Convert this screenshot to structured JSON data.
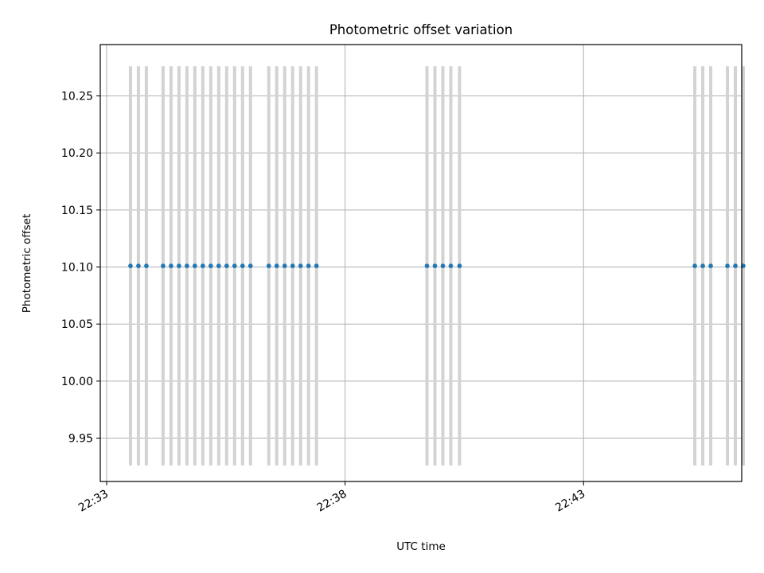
{
  "chart_data": {
    "type": "scatter",
    "title": "Photometric offset variation",
    "xlabel": "UTC time",
    "ylabel": "Photometric offset",
    "x_format": "HH:MM",
    "xlim": [
      "22:32:52",
      "22:46:19"
    ],
    "ylim": [
      9.912,
      10.295
    ],
    "grid": true,
    "yticks": [
      9.95,
      10.0,
      10.05,
      10.1,
      10.15,
      10.2,
      10.25
    ],
    "ytick_labels": [
      "9.95",
      "10.00",
      "10.05",
      "10.10",
      "10.15",
      "10.20",
      "10.25"
    ],
    "xticks": [
      "22:33:00",
      "22:38:00",
      "22:43:00"
    ],
    "xtick_labels": [
      "22:33",
      "22:38",
      "22:43"
    ],
    "errorbar_color": "#d3d3d3",
    "point_color": "#1f77b4",
    "series": [
      {
        "x": [
          "22:33:30",
          "22:33:40",
          "22:33:50",
          "22:34:11",
          "22:34:21",
          "22:34:31",
          "22:34:41",
          "22:34:51",
          "22:35:01",
          "22:35:11",
          "22:35:21",
          "22:35:31",
          "22:35:41",
          "22:35:51",
          "22:36:01",
          "22:36:24",
          "22:36:34",
          "22:36:44",
          "22:36:54",
          "22:37:04",
          "22:37:14",
          "22:37:24",
          "22:39:43",
          "22:39:53",
          "22:40:03",
          "22:40:13",
          "22:40:24",
          "22:45:20",
          "22:45:30",
          "22:45:40",
          "22:46:01",
          "22:46:11",
          "22:46:21"
        ],
        "y": [
          10.101,
          10.101,
          10.101,
          10.101,
          10.101,
          10.101,
          10.101,
          10.101,
          10.101,
          10.101,
          10.101,
          10.101,
          10.101,
          10.101,
          10.101,
          10.101,
          10.101,
          10.101,
          10.101,
          10.101,
          10.101,
          10.101,
          10.101,
          10.101,
          10.101,
          10.101,
          10.101,
          10.101,
          10.101,
          10.101,
          10.101,
          10.101,
          10.101
        ],
        "yerr": [
          0.175,
          0.175,
          0.175,
          0.175,
          0.175,
          0.175,
          0.175,
          0.175,
          0.175,
          0.175,
          0.175,
          0.175,
          0.175,
          0.175,
          0.175,
          0.175,
          0.175,
          0.175,
          0.175,
          0.175,
          0.175,
          0.175,
          0.175,
          0.175,
          0.175,
          0.175,
          0.175,
          0.175,
          0.175,
          0.175,
          0.175,
          0.175,
          0.175
        ]
      }
    ]
  }
}
